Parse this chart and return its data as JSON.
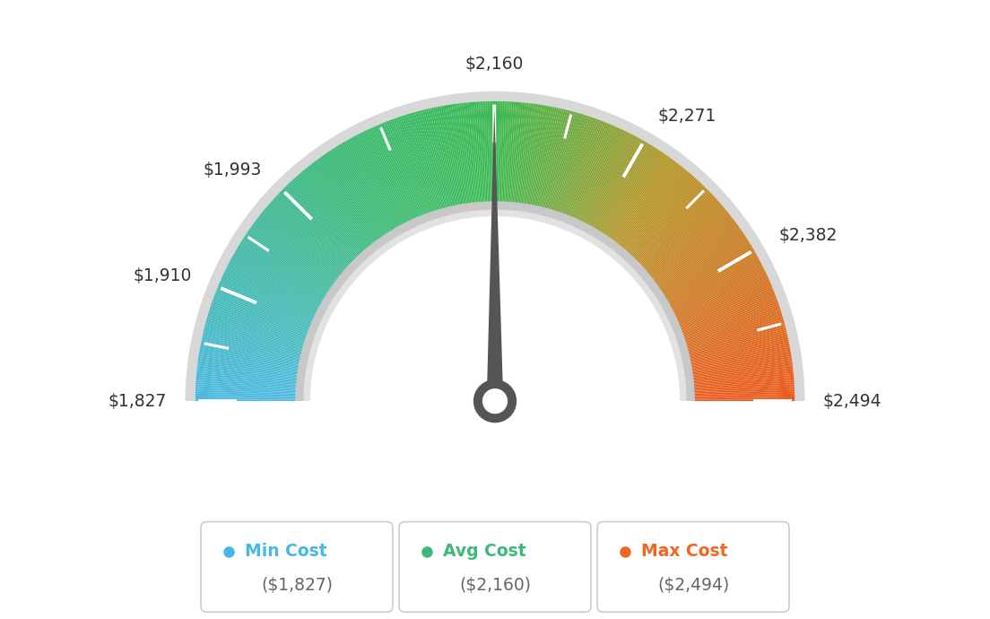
{
  "min_val": 1827,
  "max_val": 2494,
  "avg_val": 2160,
  "tick_labels": [
    "$1,827",
    "$1,910",
    "$1,993",
    "$2,160",
    "$2,271",
    "$2,382",
    "$2,494"
  ],
  "tick_values": [
    1827,
    1910,
    1993,
    2160,
    2271,
    2382,
    2494
  ],
  "legend_labels": [
    "Min Cost",
    "Avg Cost",
    "Max Cost"
  ],
  "legend_values": [
    "($1,827)",
    "($2,160)",
    "($2,494)"
  ],
  "legend_colors": [
    "#45b8e8",
    "#3cb878",
    "#f26522"
  ],
  "bg_color": "#ffffff",
  "color_stops": {
    "t": [
      0.0,
      0.3,
      0.5,
      0.7,
      1.0
    ],
    "r": [
      75,
      58,
      58,
      180,
      235
    ],
    "g": [
      185,
      185,
      185,
      150,
      90
    ],
    "b": [
      225,
      120,
      80,
      40,
      30
    ]
  }
}
